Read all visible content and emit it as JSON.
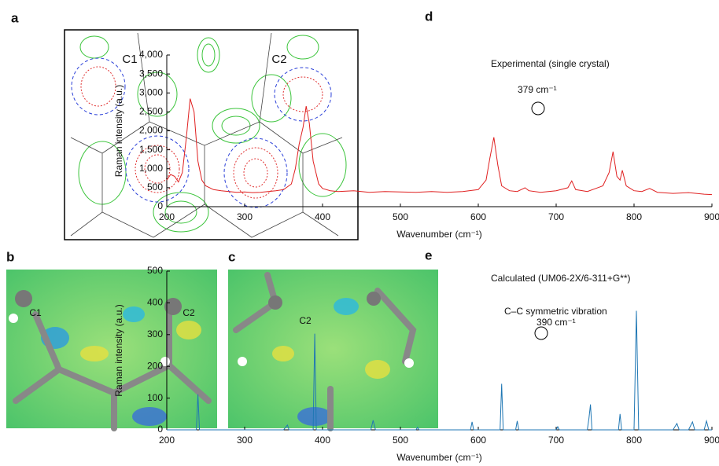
{
  "panels": {
    "a": {
      "label": "a",
      "atoms": [
        "C1",
        "C2"
      ]
    },
    "b": {
      "label": "b",
      "atoms": [
        "C1",
        "C2"
      ]
    },
    "c": {
      "label": "c",
      "atoms": [
        "C2"
      ]
    }
  },
  "chart_data": [
    {
      "type": "line",
      "panel_label": "d",
      "annotation": "Experimental (single crystal)",
      "peak_label": "379 cm⁻¹",
      "x_label": "Wavenumber (cm⁻¹)",
      "y_label": "Raman intensity (a.u.)",
      "color": "#e02020",
      "xlim": [
        200,
        900
      ],
      "ylim": [
        0,
        4000
      ],
      "xticks": [
        200,
        300,
        400,
        500,
        600,
        700,
        800,
        900
      ],
      "yticks": [
        0,
        500,
        {
          "value": 1000,
          "label": "1,000"
        },
        {
          "value": 1500,
          "label": "1,500"
        },
        {
          "value": 2000,
          "label": "2,000"
        },
        {
          "value": 2500,
          "label": "2,500"
        },
        {
          "value": 3000,
          "label": "3,000"
        },
        {
          "value": 3500,
          "label": "3,500"
        },
        {
          "value": 4000,
          "label": "4,000"
        }
      ],
      "x": [
        200,
        205,
        210,
        215,
        220,
        225,
        230,
        235,
        240,
        245,
        250,
        260,
        270,
        280,
        290,
        300,
        310,
        320,
        330,
        340,
        350,
        360,
        365,
        370,
        375,
        379,
        383,
        388,
        395,
        400,
        410,
        420,
        440,
        460,
        480,
        500,
        520,
        540,
        560,
        580,
        600,
        610,
        615,
        620,
        625,
        630,
        640,
        650,
        660,
        665,
        680,
        700,
        715,
        720,
        725,
        740,
        760,
        768,
        773,
        778,
        782,
        785,
        790,
        800,
        810,
        820,
        830,
        850,
        870,
        890,
        900
      ],
      "values": [
        700,
        850,
        800,
        650,
        900,
        1800,
        2850,
        2500,
        1200,
        700,
        550,
        450,
        420,
        400,
        380,
        390,
        370,
        380,
        400,
        420,
        450,
        600,
        1000,
        1650,
        2100,
        2650,
        2200,
        1200,
        600,
        480,
        420,
        400,
        420,
        380,
        400,
        390,
        380,
        400,
        380,
        400,
        450,
        700,
        1300,
        1830,
        1100,
        550,
        420,
        400,
        500,
        420,
        380,
        420,
        500,
        680,
        450,
        400,
        550,
        900,
        1450,
        800,
        700,
        960,
        550,
        420,
        400,
        480,
        380,
        350,
        370,
        330,
        320
      ]
    },
    {
      "type": "line",
      "panel_label": "e",
      "annotation": "Calculated (UM06-2X/6-311+G**)",
      "mode_label": "C–C symmetric vibration",
      "peak_label": "390 cm⁻¹",
      "x_label": "Wavenumber (cm⁻¹)",
      "y_label": "Raman intensity (a.u.)",
      "color": "#1f77b4",
      "xlim": [
        200,
        900
      ],
      "ylim": [
        0,
        500
      ],
      "xticks": [
        200,
        300,
        400,
        500,
        600,
        700,
        800,
        900
      ],
      "yticks": [
        0,
        100,
        200,
        300,
        400,
        500
      ],
      "x": [
        200,
        238,
        240,
        242,
        350,
        355,
        357,
        388,
        390,
        392,
        462,
        465,
        468,
        520,
        522,
        524,
        590,
        592,
        594,
        628,
        630,
        632,
        648,
        650,
        652,
        700,
        702,
        704,
        740,
        742,
        744,
        746,
        780,
        782,
        784,
        800,
        803,
        806,
        850,
        855,
        858,
        870,
        875,
        878,
        890,
        893,
        896,
        900
      ],
      "values": [
        0,
        0,
        112,
        0,
        0,
        15,
        0,
        0,
        303,
        0,
        0,
        30,
        0,
        0,
        8,
        0,
        0,
        25,
        0,
        0,
        145,
        0,
        0,
        28,
        0,
        0,
        10,
        0,
        0,
        35,
        80,
        0,
        0,
        50,
        0,
        0,
        375,
        0,
        0,
        20,
        0,
        0,
        25,
        0,
        0,
        28,
        0,
        0
      ]
    }
  ]
}
